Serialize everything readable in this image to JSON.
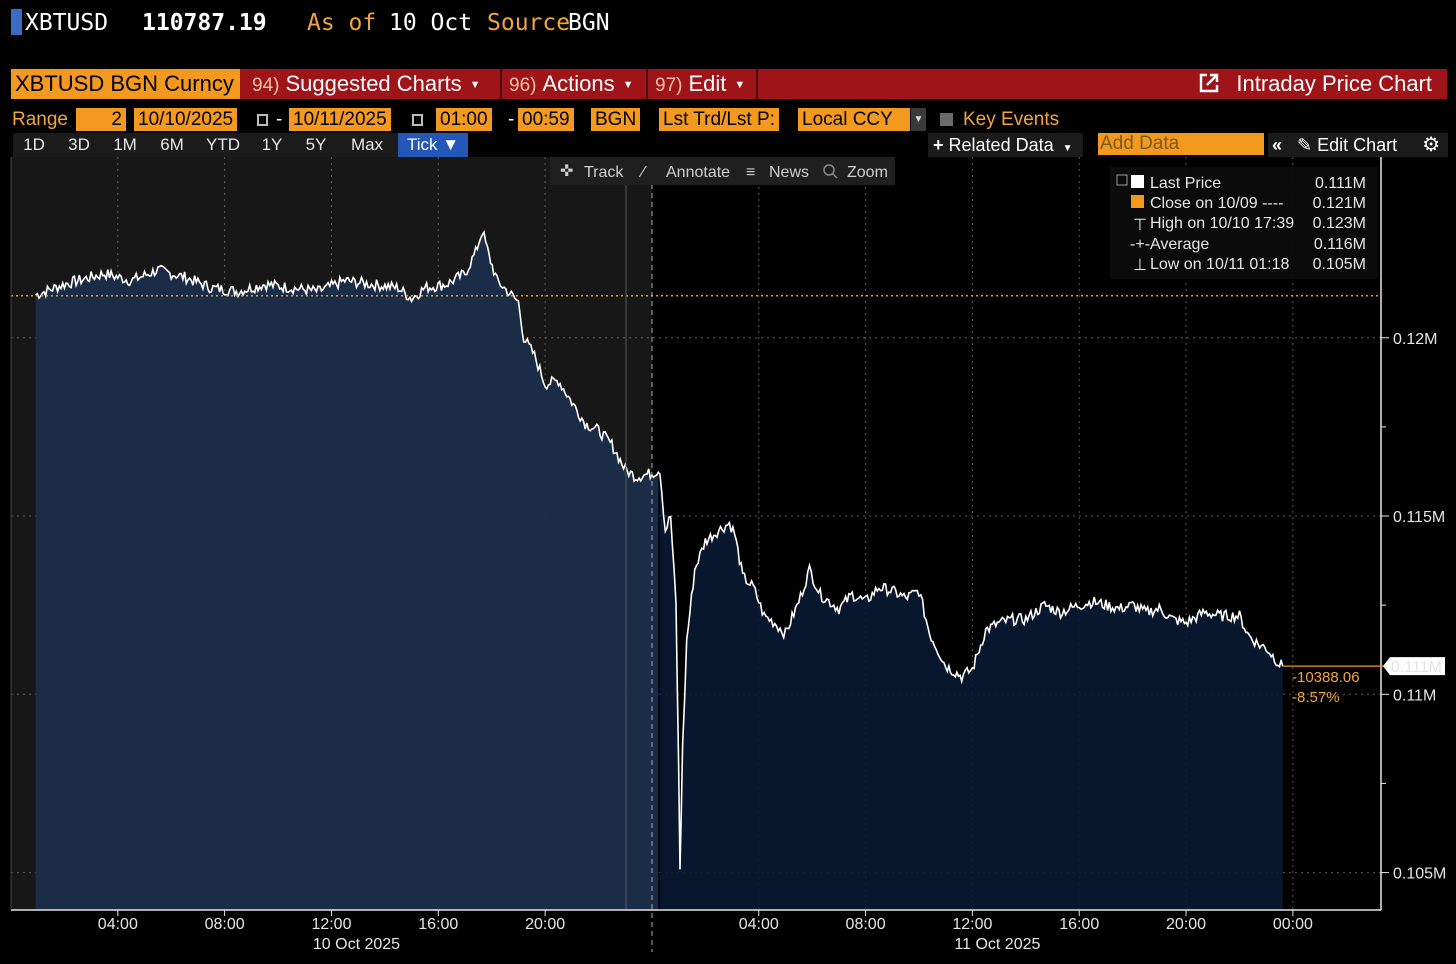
{
  "header": {
    "ticker": "XBTUSD",
    "last_price": "110787.19",
    "as_of_label": "As of",
    "as_of_date": "10 Oct",
    "source_label": "Source",
    "source_value": "BGN"
  },
  "menubar": {
    "security": "XBTUSD BGN Curncy",
    "items": [
      {
        "num": "94)",
        "label": "Suggested Charts"
      },
      {
        "num": "96)",
        "label": "Actions"
      },
      {
        "num": "97)",
        "label": "Edit"
      }
    ],
    "view_title": "Intraday Price Chart"
  },
  "range": {
    "label": "Range",
    "days": "2",
    "start_date": "10/10/2025",
    "end_date": "10/11/2025",
    "start_time": "01:00",
    "end_time": "00:59",
    "source": "BGN",
    "field": "Lst Trd/Lst P:",
    "currency": "Local CCY",
    "key_events": "Key Events"
  },
  "periods": [
    "1D",
    "3D",
    "1M",
    "6M",
    "YTD",
    "1Y",
    "5Y",
    "Max",
    "Tick ▼"
  ],
  "active_period": "Tick ▼",
  "toolbar_right": {
    "related_data": "Related Data",
    "add_data_placeholder": "Add Data",
    "edit_chart": "Edit Chart"
  },
  "chart_tools": [
    "Track",
    "Annotate",
    "News",
    "Zoom"
  ],
  "legend": [
    {
      "label": "Last Price",
      "value": "0.111M"
    },
    {
      "label": "Close on 10/09 ----",
      "value": "0.121M"
    },
    {
      "label": "High on 10/10 17:39",
      "value": "0.123M"
    },
    {
      "label": "Average",
      "value": "0.116M"
    },
    {
      "label": "Low on 10/11 01:18",
      "value": "0.105M"
    }
  ],
  "last_price_tag": "0.111M",
  "net_change": "-10388.06",
  "pct_change": "-8.57%",
  "colors": {
    "accent": "#f39a1e",
    "menubar": "#9e1418",
    "area_fill": "#1b2d4a",
    "line": "#ffffff",
    "close_line": "#f39a1e"
  },
  "chart_data": {
    "type": "area",
    "ylabels": [
      "0.12M",
      "0.115M",
      "0.11M",
      "0.105M"
    ],
    "yticks": [
      120000,
      115000,
      110000,
      105000
    ],
    "ylim": [
      103950,
      125070
    ],
    "xlabels": [
      "04:00",
      "08:00",
      "12:00",
      "16:00",
      "20:00",
      "04:00",
      "08:00",
      "12:00",
      "16:00",
      "20:00",
      "00:00"
    ],
    "xticks_hours": [
      4,
      8,
      12,
      16,
      20,
      28,
      32,
      36,
      40,
      44,
      48
    ],
    "date_labels": [
      "10 Oct 2025",
      "11 Oct 2025"
    ],
    "previous_close": 121180,
    "series": [
      {
        "name": "Last Price",
        "points": [
          [
            0.92,
            121200
          ],
          [
            2.0,
            121500
          ],
          [
            3.5,
            121800
          ],
          [
            4.5,
            121600
          ],
          [
            5.5,
            121900
          ],
          [
            6.5,
            121700
          ],
          [
            7.5,
            121400
          ],
          [
            8.5,
            121300
          ],
          [
            9.5,
            121500
          ],
          [
            10.5,
            121400
          ],
          [
            11.5,
            121300
          ],
          [
            12.5,
            121600
          ],
          [
            13.5,
            121500
          ],
          [
            14.5,
            121400
          ],
          [
            15.0,
            121100
          ],
          [
            15.5,
            121400
          ],
          [
            16.3,
            121500
          ],
          [
            17.0,
            121800
          ],
          [
            17.4,
            122400
          ],
          [
            17.65,
            123000
          ],
          [
            17.9,
            122300
          ],
          [
            18.2,
            121600
          ],
          [
            18.6,
            121300
          ],
          [
            19.0,
            121000
          ],
          [
            19.2,
            120000
          ],
          [
            19.6,
            119500
          ],
          [
            20.0,
            118700
          ],
          [
            20.5,
            118800
          ],
          [
            21.0,
            118200
          ],
          [
            21.5,
            117600
          ],
          [
            22.0,
            117400
          ],
          [
            22.5,
            117000
          ],
          [
            23.0,
            116300
          ],
          [
            23.4,
            116100
          ],
          [
            24.0,
            116200
          ],
          [
            24.3,
            116300
          ],
          [
            24.5,
            114600
          ],
          [
            24.7,
            115000
          ],
          [
            24.9,
            112500
          ],
          [
            25.0,
            108000
          ],
          [
            25.05,
            105100
          ],
          [
            25.15,
            108500
          ],
          [
            25.3,
            111500
          ],
          [
            25.6,
            113500
          ],
          [
            26.0,
            114300
          ],
          [
            26.5,
            114600
          ],
          [
            26.9,
            114800
          ],
          [
            27.1,
            114500
          ],
          [
            27.4,
            113300
          ],
          [
            27.8,
            113000
          ],
          [
            28.2,
            112200
          ],
          [
            28.6,
            112000
          ],
          [
            29.0,
            111700
          ],
          [
            29.5,
            112600
          ],
          [
            29.9,
            113500
          ],
          [
            30.3,
            112800
          ],
          [
            31.0,
            112400
          ],
          [
            31.5,
            112800
          ],
          [
            32.0,
            112600
          ],
          [
            32.5,
            113000
          ],
          [
            33.0,
            112900
          ],
          [
            33.5,
            112700
          ],
          [
            34.0,
            112900
          ],
          [
            34.4,
            111700
          ],
          [
            35.0,
            110800
          ],
          [
            35.6,
            110500
          ],
          [
            36.0,
            110700
          ],
          [
            36.5,
            111800
          ],
          [
            37.0,
            112000
          ],
          [
            37.5,
            112100
          ],
          [
            38.0,
            112100
          ],
          [
            38.7,
            112500
          ],
          [
            39.3,
            112300
          ],
          [
            40.0,
            112500
          ],
          [
            40.5,
            112600
          ],
          [
            41.0,
            112500
          ],
          [
            41.5,
            112400
          ],
          [
            42.0,
            112500
          ],
          [
            42.5,
            112300
          ],
          [
            43.0,
            112400
          ],
          [
            43.5,
            112100
          ],
          [
            44.0,
            112000
          ],
          [
            44.7,
            112300
          ],
          [
            45.3,
            112200
          ],
          [
            46.0,
            112200
          ],
          [
            46.3,
            111700
          ],
          [
            46.7,
            111400
          ],
          [
            47.0,
            111300
          ],
          [
            47.5,
            110850
          ],
          [
            47.62,
            110790
          ]
        ]
      }
    ]
  }
}
